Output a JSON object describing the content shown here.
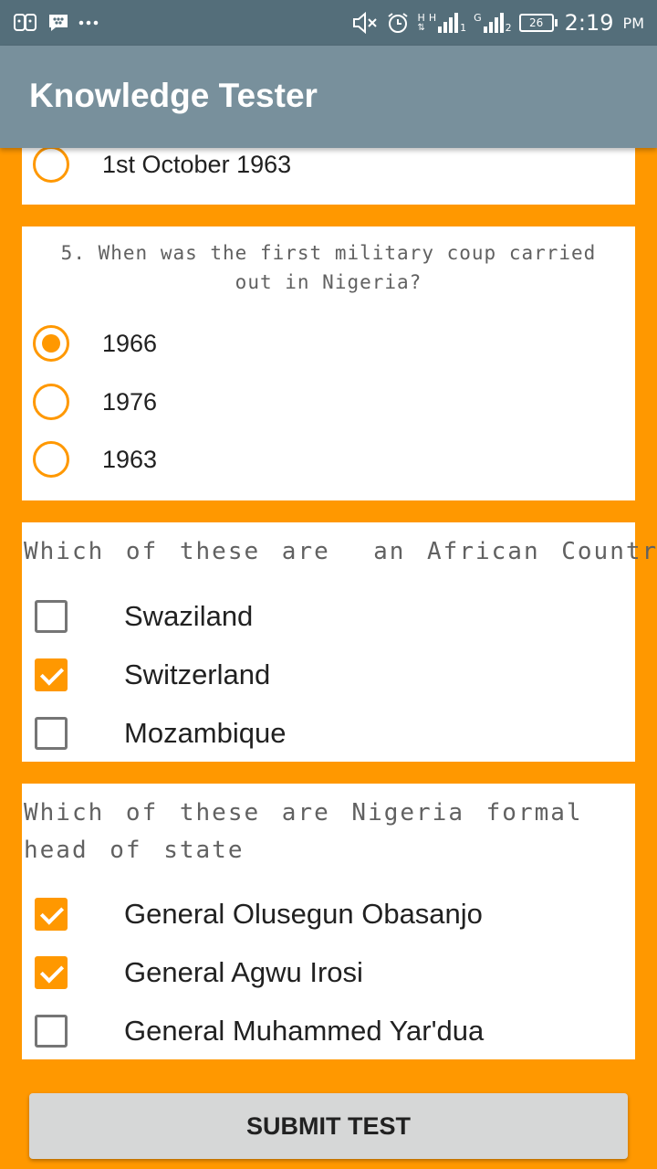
{
  "status_bar": {
    "left_icons": [
      "face-icon",
      "bbm-icon",
      "more-dots-icon"
    ],
    "right_icons": [
      "mute-icon",
      "alarm-icon",
      "signal-sim1-icon",
      "signal-sim2-icon",
      "battery-icon"
    ],
    "net1_type": "H",
    "net1_sub": "H",
    "net2_type": "G",
    "sim1": "1",
    "sim2": "2",
    "battery_level": "26",
    "time": "2:19",
    "ampm": "PM"
  },
  "app": {
    "title": "Knowledge Tester",
    "colors": {
      "accent": "#FF9800",
      "appbar": "#78909C",
      "statusbar": "#546E7A"
    }
  },
  "questions": [
    {
      "number_text": "",
      "type": "radio",
      "options": [
        {
          "label": "1st October 1963",
          "checked": false
        }
      ]
    },
    {
      "text": "5. When was the first military coup carried out in Nigeria?",
      "type": "radio",
      "options": [
        {
          "label": "1966",
          "checked": true
        },
        {
          "label": "1976",
          "checked": false
        },
        {
          "label": "1963",
          "checked": false
        }
      ]
    },
    {
      "text": "Which of these are  an African Country",
      "type": "checkbox",
      "options": [
        {
          "label": "Swaziland",
          "checked": false
        },
        {
          "label": "Switzerland",
          "checked": true
        },
        {
          "label": "Mozambique",
          "checked": false
        }
      ]
    },
    {
      "text": "Which of these are Nigeria formal head of state",
      "type": "checkbox",
      "options": [
        {
          "label": "General Olusegun Obasanjo",
          "checked": true
        },
        {
          "label": "General Agwu Irosi",
          "checked": true
        },
        {
          "label": "General Muhammed Yar'dua",
          "checked": false
        }
      ]
    }
  ],
  "submit_label": "SUBMIT TEST"
}
